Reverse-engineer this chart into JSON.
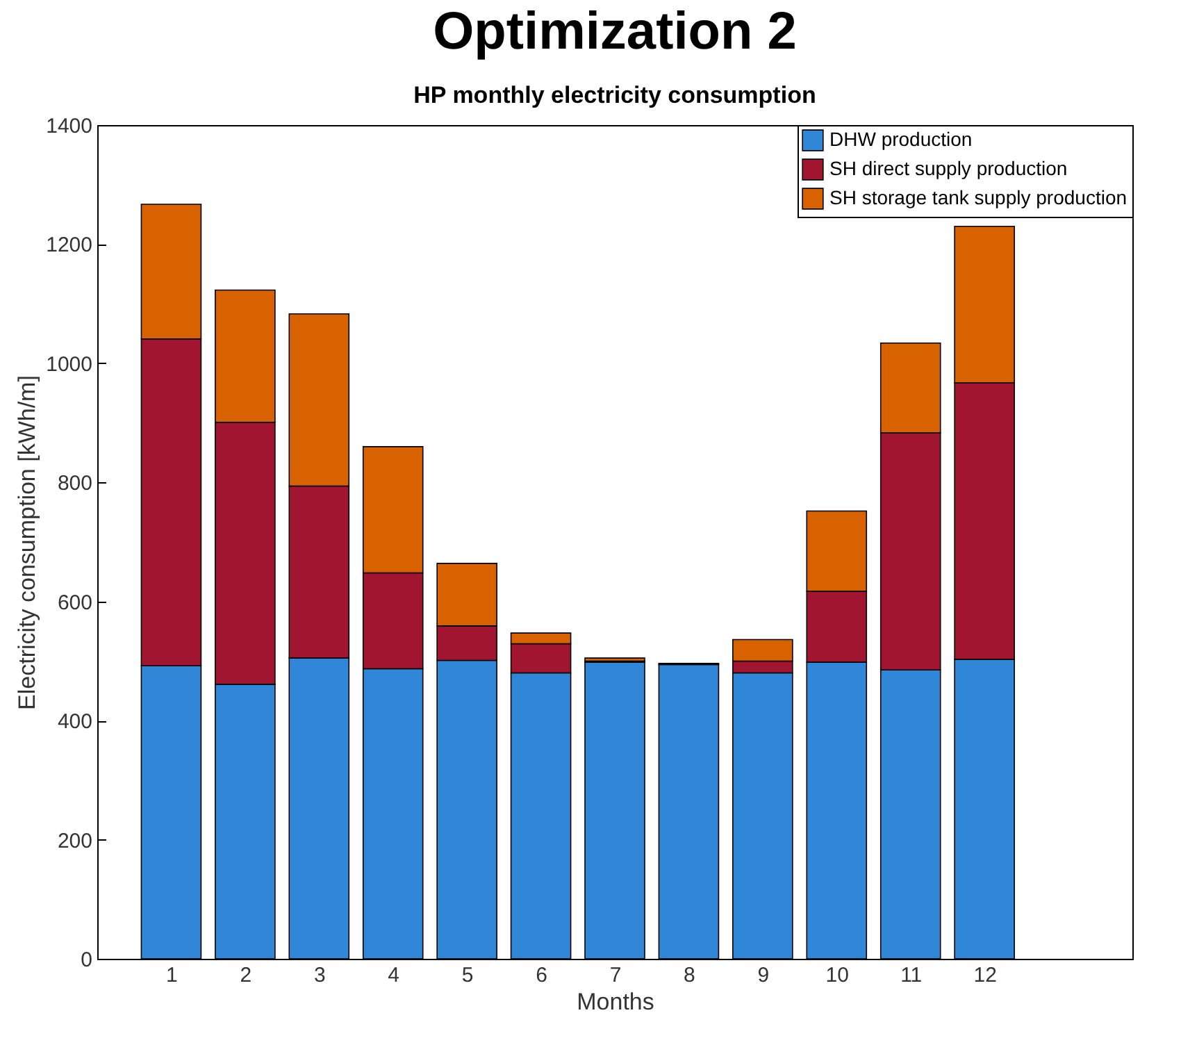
{
  "chart_data": {
    "type": "bar",
    "title": "Optimization 2",
    "subtitle": "HP monthly electricity consumption",
    "xlabel": "Months",
    "ylabel": "Electricity consumption [kWh/m]",
    "x": [
      1,
      2,
      3,
      4,
      5,
      6,
      7,
      8,
      9,
      10,
      11,
      12
    ],
    "stacked": true,
    "series": [
      {
        "name": "DHW production",
        "color": "#3087d8",
        "values": [
          492,
          461,
          505,
          487,
          501,
          480,
          498,
          494,
          480,
          498,
          485,
          503
        ]
      },
      {
        "name": "SH direct supply production",
        "color": "#a11530",
        "values": [
          549,
          440,
          289,
          161,
          58,
          49,
          2,
          1,
          20,
          119,
          398,
          464
        ]
      },
      {
        "name": "SH storage tank supply production",
        "color": "#d96200",
        "values": [
          226,
          222,
          289,
          212,
          105,
          18,
          5,
          1,
          36,
          135,
          151,
          263
        ]
      }
    ],
    "xlim": [
      0,
      14
    ],
    "xticks": [
      1,
      2,
      3,
      4,
      5,
      6,
      7,
      8,
      9,
      10,
      11,
      12
    ],
    "ylim": [
      0,
      1400
    ],
    "yticks": [
      0,
      200,
      400,
      600,
      800,
      1000,
      1200,
      1400
    ],
    "legend": "top right"
  }
}
